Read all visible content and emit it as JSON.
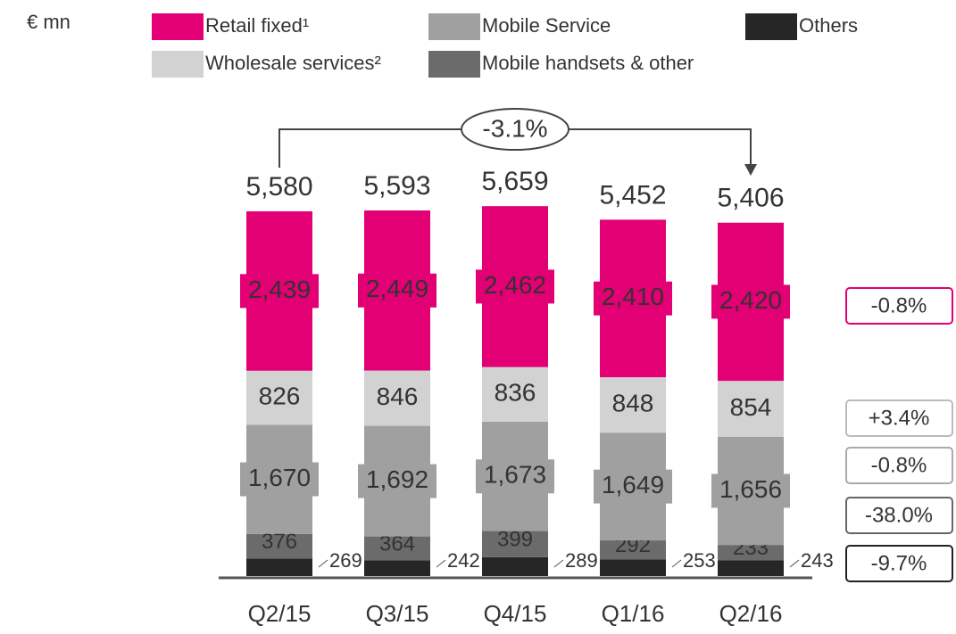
{
  "chart_data": {
    "type": "bar",
    "stacked": true,
    "unit_label": "€ mn",
    "categories": [
      "Q2/15",
      "Q3/15",
      "Q4/15",
      "Q1/16",
      "Q2/16"
    ],
    "series": [
      {
        "name": "Others",
        "color": "#262626",
        "values": [
          269,
          242,
          289,
          253,
          243
        ],
        "value_labels": [
          "269",
          "242",
          "289",
          "253",
          "243"
        ],
        "change": "-9.7%"
      },
      {
        "name": "Mobile handsets & other",
        "color": "#6b6b6b",
        "values": [
          376,
          364,
          399,
          292,
          233
        ],
        "value_labels": [
          "376",
          "364",
          "399",
          "292",
          "233"
        ],
        "change": "-38.0%"
      },
      {
        "name": "Mobile Service",
        "color": "#a0a0a0",
        "values": [
          1670,
          1692,
          1673,
          1649,
          1656
        ],
        "value_labels": [
          "1,670",
          "1,692",
          "1,673",
          "1,649",
          "1,656"
        ],
        "change": "-0.8%"
      },
      {
        "name": "Wholesale services²",
        "color": "#d2d2d2",
        "values": [
          826,
          846,
          836,
          848,
          854
        ],
        "value_labels": [
          "826",
          "846",
          "836",
          "848",
          "854"
        ],
        "change": "+3.4%"
      },
      {
        "name": "Retail fixed¹",
        "color": "#e20074",
        "values": [
          2439,
          2449,
          2462,
          2410,
          2420
        ],
        "value_labels": [
          "2,439",
          "2,449",
          "2,462",
          "2,410",
          "2,420"
        ],
        "change": "-0.8%"
      }
    ],
    "totals": [
      5580,
      5593,
      5659,
      5452,
      5406
    ],
    "total_labels": [
      "5,580",
      "5,593",
      "5,659",
      "5,452",
      "5,406"
    ],
    "overall_change": "-3.1%"
  }
}
